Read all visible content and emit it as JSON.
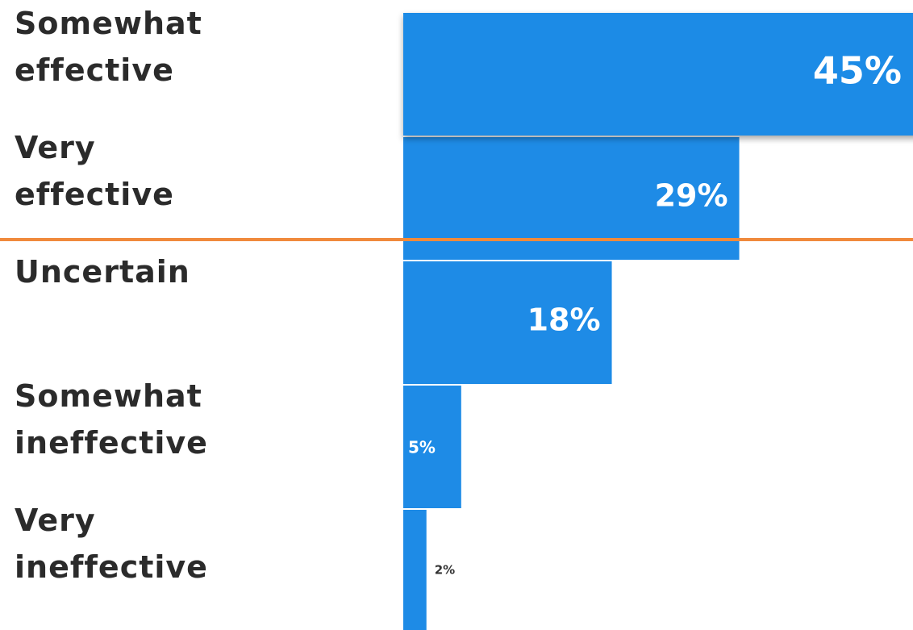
{
  "chart_data": {
    "type": "bar",
    "orientation": "horizontal",
    "categories": [
      "Somewhat effective",
      "Very effective",
      "Uncertain",
      "Somewhat ineffective",
      "Very ineffective"
    ],
    "values": [
      45,
      29,
      18,
      5,
      2
    ],
    "value_labels": [
      "45%",
      "29%",
      "18%",
      "5%",
      "2%"
    ],
    "color": "#1e8be6",
    "xlim": [
      0,
      44
    ]
  }
}
